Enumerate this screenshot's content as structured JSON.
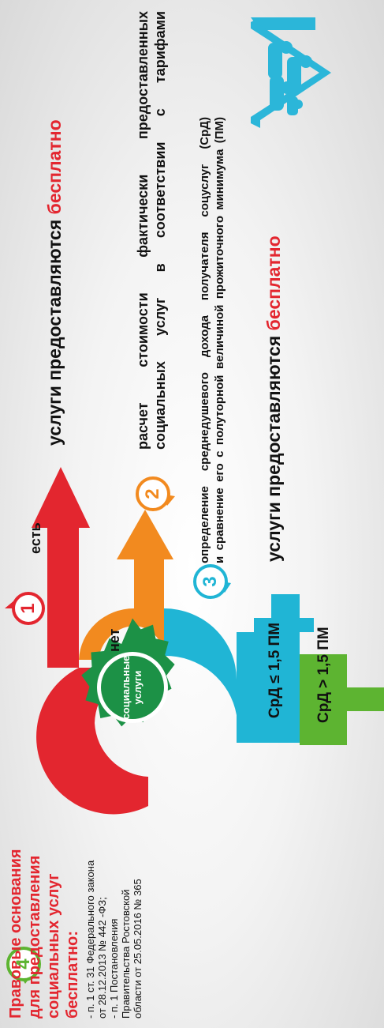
{
  "legal": {
    "heading_lines": [
      "Правовые основания",
      "для предоставления",
      "социальных услуг",
      "бесплатно:"
    ],
    "items": [
      "- п. 1 ст. 31 Федерального закона",
      "от 28.12.2013 № 442 -ФЗ;",
      "- п. 1  Постановления",
      "Правительства  Ростовской",
      "области от 25.05.2016  № 365"
    ]
  },
  "steps": {
    "step1": "1",
    "step2": "2",
    "step3": "3",
    "step4": "4"
  },
  "center_label_lines": [
    "социальные",
    "услуги"
  ],
  "branches": {
    "yes_label": "есть",
    "no_label": "нет",
    "cond_low": "СрД ≤ 1,5 ПМ",
    "cond_high": "СрД > 1,5 ПМ"
  },
  "outcomes": {
    "free_top_prefix": "услуги предоставляются ",
    "free_top_suffix": "бесплатно",
    "calc_lines": [
      "расчет  стоимости  фактически  предоставленных",
      "социальных  услуг  в  соответствии  с  тарифами"
    ],
    "income_lines": [
      "определение     среднедушевого     дохода   получателя  соцуслуг  (СрД)",
      "и сравнение его с полуторной величиной прожиточного минимума (ПМ)"
    ],
    "free_mid_prefix": "услуги предоставляются ",
    "free_mid_suffix": "бесплатно"
  },
  "colors": {
    "red": "#e3262f",
    "orange": "#f28a1f",
    "cyan": "#20b5d5",
    "green": "#5db431",
    "dark_green": "#1c9146",
    "icon_blue": "#2bb6d9"
  },
  "icons": [
    "family-house-icon",
    "rosette-badge-icon"
  ]
}
